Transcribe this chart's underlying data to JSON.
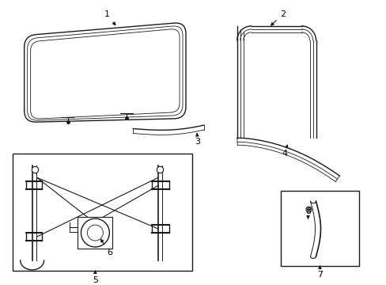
{
  "bg_color": "#ffffff",
  "line_color": "#1a1a1a",
  "label_color": "#000000"
}
